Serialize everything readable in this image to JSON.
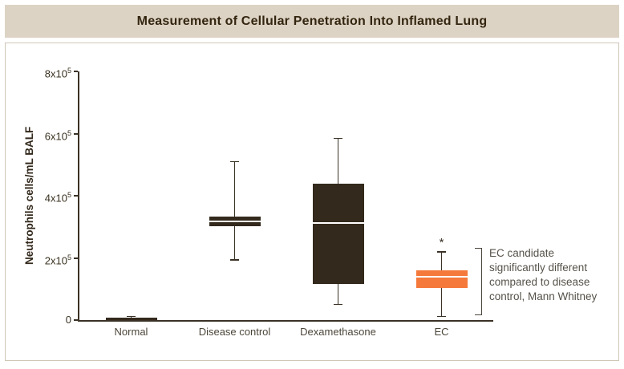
{
  "title_bar": {
    "title": "Measurement of Cellular Penetration Into Inflamed Lung"
  },
  "chart_data": {
    "type": "box",
    "title": "Measurement of Cellular Penetration Into Inflamed Lung",
    "xlabel": "",
    "ylabel": "Neutrophils cells/mL BALF",
    "ylim": [
      0,
      800000
    ],
    "grid": false,
    "yticks": [
      {
        "value": 0,
        "label": "0"
      },
      {
        "value": 200000,
        "label": "2x10^5"
      },
      {
        "value": 400000,
        "label": "4x10^5"
      },
      {
        "value": 600000,
        "label": "6x10^5"
      },
      {
        "value": 800000,
        "label": "8x10^5"
      }
    ],
    "categories": [
      "Normal",
      "Disease control",
      "Dexamethasone",
      "EC"
    ],
    "series": [
      {
        "name": "Normal",
        "min": 0,
        "q1": 1000,
        "median": 5000,
        "q3": 9000,
        "max": 12000,
        "color": "#33291c",
        "marker": ""
      },
      {
        "name": "Disease control",
        "min": 194000,
        "q1": 301000,
        "median": 317000,
        "q3": 332000,
        "max": 510000,
        "color": "#33291c",
        "marker": ""
      },
      {
        "name": "Dexamethasone",
        "min": 50000,
        "q1": 117000,
        "median": 312000,
        "q3": 440000,
        "max": 585000,
        "color": "#33291c",
        "marker": ""
      },
      {
        "name": "EC",
        "min": 12000,
        "q1": 104000,
        "median": 140000,
        "q3": 161000,
        "max": 220000,
        "color": "#f5793b",
        "marker": "*"
      }
    ],
    "colors": {
      "box_default": "#33291c",
      "box_highlight": "#f5793b",
      "axis": "#3a3226",
      "median_line": "#ffffff",
      "title_bar_bg": "#ddd3c4"
    },
    "annotation": {
      "marker": "*",
      "text": "EC candidate\nsignificantly different\ncompared to disease\ncontrol, Mann Whitney",
      "legend_position": "right"
    }
  }
}
